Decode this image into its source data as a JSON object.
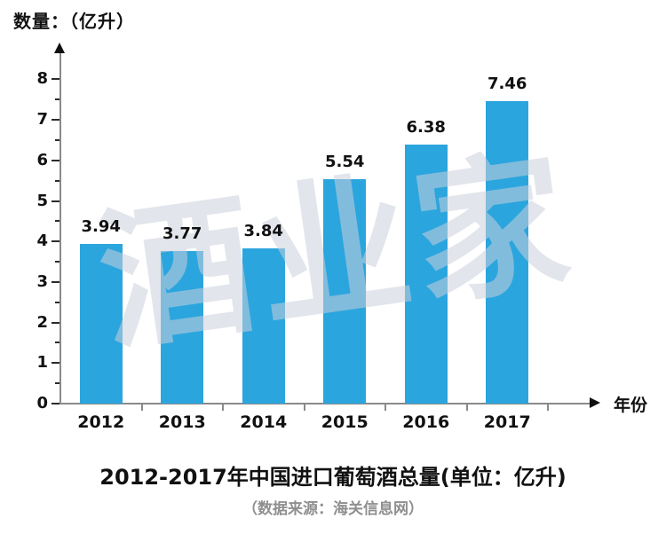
{
  "chart": {
    "y_unit_label": "数量：（亿升）",
    "watermark": "酒业家",
    "source": "（数据来源：海关信息网）"
  },
  "chart_data": {
    "type": "bar",
    "categories": [
      "2012",
      "2013",
      "2014",
      "2015",
      "2016",
      "2017"
    ],
    "values": [
      3.94,
      3.77,
      3.84,
      5.54,
      6.38,
      7.46
    ],
    "data_labels": [
      "3.94",
      "3.77",
      "3.84",
      "5.54",
      "6.38",
      "7.46"
    ],
    "title": "2012-2017年中国进口葡萄酒总量(单位：亿升)",
    "xlabel": "年份",
    "ylabel": "数量：（亿升）",
    "ylim": [
      0,
      8
    ],
    "ytick_step": 1,
    "minor_tick_step": 0.5,
    "grid": false,
    "legend": false,
    "bar_color": "#2BA5DE",
    "axis_color": "#8a8a8a",
    "label_color": "#111111",
    "watermark_color": "#cacfdb"
  }
}
